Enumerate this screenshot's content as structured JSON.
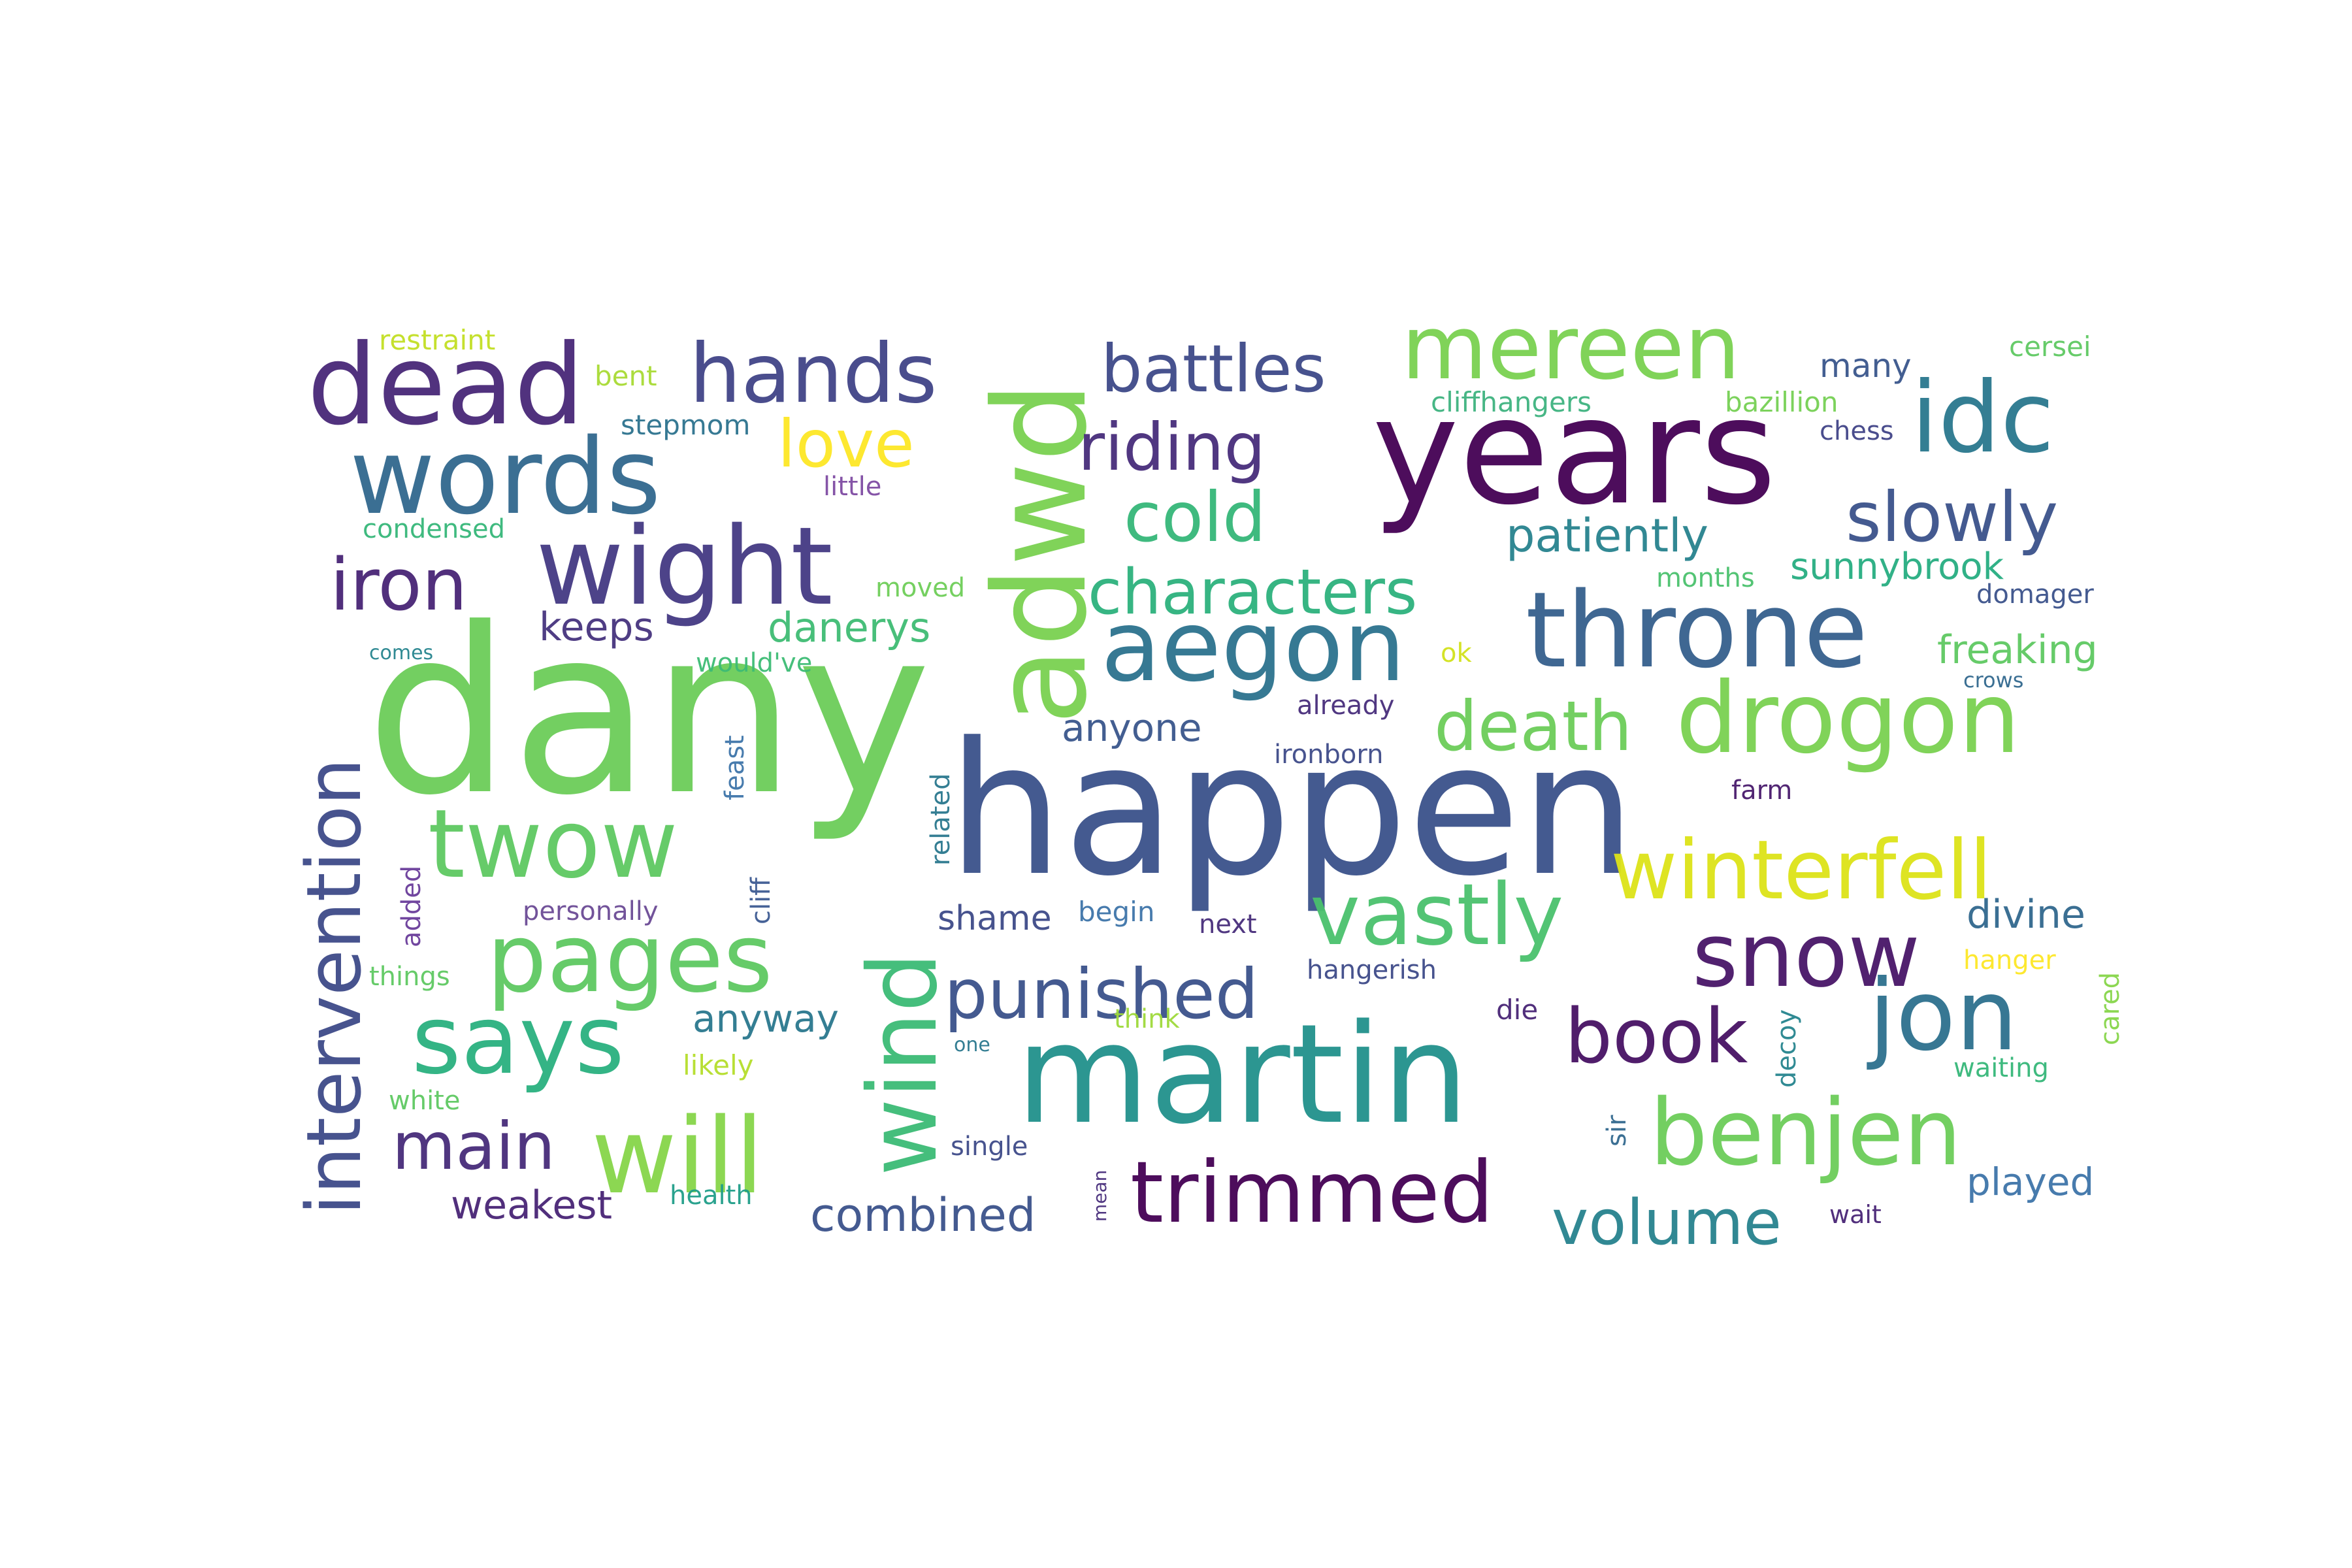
{
  "word_cloud": {
    "words": [
      {
        "text": "dany",
        "color": "#6ccd59"
      },
      {
        "text": "happen",
        "color": "#3b528b"
      },
      {
        "text": "martin",
        "color": "#21918c"
      },
      {
        "text": "years",
        "color": "#440154"
      },
      {
        "text": "adwd",
        "color": "#7ad151"
      },
      {
        "text": "dead",
        "color": "#482878"
      },
      {
        "text": "words",
        "color": "#31688e"
      },
      {
        "text": "wight",
        "color": "#443983"
      },
      {
        "text": "throne",
        "color": "#355f8d"
      },
      {
        "text": "aegon",
        "color": "#2c728e"
      },
      {
        "text": "drogon",
        "color": "#7ad151"
      },
      {
        "text": "mereen",
        "color": "#7ad151"
      },
      {
        "text": "idc",
        "color": "#2a788e"
      },
      {
        "text": "hands",
        "color": "#414487"
      },
      {
        "text": "battles",
        "color": "#3e4989"
      },
      {
        "text": "riding",
        "color": "#472d7b"
      },
      {
        "text": "love",
        "color": "#fde725"
      },
      {
        "text": "cold",
        "color": "#35b779"
      },
      {
        "text": "characters",
        "color": "#2db27d"
      },
      {
        "text": "iron",
        "color": "#482475"
      },
      {
        "text": "slowly",
        "color": "#3b528b"
      },
      {
        "text": "patiently",
        "color": "#26828e"
      },
      {
        "text": "intervention",
        "color": "#3e4a89"
      },
      {
        "text": "twow",
        "color": "#5ec962"
      },
      {
        "text": "pages",
        "color": "#5ec962"
      },
      {
        "text": "says",
        "color": "#2ab07f"
      },
      {
        "text": "will",
        "color": "#86d549"
      },
      {
        "text": "wind",
        "color": "#3cbb75"
      },
      {
        "text": "vastly",
        "color": "#4ac16d"
      },
      {
        "text": "snow",
        "color": "#481668"
      },
      {
        "text": "winterfell",
        "color": "#dde318"
      },
      {
        "text": "death",
        "color": "#6ccd59"
      },
      {
        "text": "punished",
        "color": "#3b528b"
      },
      {
        "text": "book",
        "color": "#471164"
      },
      {
        "text": "jon",
        "color": "#2d708e"
      },
      {
        "text": "benjen",
        "color": "#6ccd59"
      },
      {
        "text": "trimmed",
        "color": "#440154"
      },
      {
        "text": "volume",
        "color": "#26828e"
      },
      {
        "text": "main",
        "color": "#472c7a"
      },
      {
        "text": "combined",
        "color": "#3b528b"
      },
      {
        "text": "weakest",
        "color": "#482475"
      },
      {
        "text": "anyway",
        "color": "#2a788e"
      },
      {
        "text": "danerys",
        "color": "#3fbc73"
      },
      {
        "text": "keeps",
        "color": "#46337e"
      },
      {
        "text": "anyone",
        "color": "#39568c"
      },
      {
        "text": "sunnybrook",
        "color": "#26ad81"
      },
      {
        "text": "freaking",
        "color": "#5ec962"
      },
      {
        "text": "divine",
        "color": "#31688e"
      },
      {
        "text": "played",
        "color": "#3e74a9"
      },
      {
        "text": "restraint",
        "color": "#c2df23"
      },
      {
        "text": "bent",
        "color": "#a8db34"
      },
      {
        "text": "stepmom",
        "color": "#2c728e"
      },
      {
        "text": "little",
        "color": "#7f4ba3"
      },
      {
        "text": "condensed",
        "color": "#35b779"
      },
      {
        "text": "moved",
        "color": "#6ece58"
      },
      {
        "text": "comes",
        "color": "#25848e"
      },
      {
        "text": "would've",
        "color": "#3dbc74"
      },
      {
        "text": "cliffhangers",
        "color": "#3eb37f"
      },
      {
        "text": "bazillion",
        "color": "#75d054"
      },
      {
        "text": "many",
        "color": "#39568c"
      },
      {
        "text": "cersei",
        "color": "#5ec962"
      },
      {
        "text": "chess",
        "color": "#414487"
      },
      {
        "text": "months",
        "color": "#4ac16d"
      },
      {
        "text": "domager",
        "color": "#3b528b"
      },
      {
        "text": "crows",
        "color": "#31688e"
      },
      {
        "text": "ok",
        "color": "#d2e21b"
      },
      {
        "text": "already",
        "color": "#472d7b"
      },
      {
        "text": "ironborn",
        "color": "#3e4a89"
      },
      {
        "text": "farm",
        "color": "#481a6c"
      },
      {
        "text": "feast",
        "color": "#3e74a9"
      },
      {
        "text": "related",
        "color": "#2a788e"
      },
      {
        "text": "cliff",
        "color": "#3d5a92"
      },
      {
        "text": "added",
        "color": "#6a3d9a"
      },
      {
        "text": "personally",
        "color": "#6b4a95"
      },
      {
        "text": "shame",
        "color": "#3e4a89"
      },
      {
        "text": "begin",
        "color": "#3e74a9"
      },
      {
        "text": "next",
        "color": "#472d7b"
      },
      {
        "text": "hangerish",
        "color": "#3e4a89"
      },
      {
        "text": "hanger",
        "color": "#fde725"
      },
      {
        "text": "things",
        "color": "#5ec962"
      },
      {
        "text": "think",
        "color": "#9fda3a"
      },
      {
        "text": "die",
        "color": "#482475"
      },
      {
        "text": "decoy",
        "color": "#25848e"
      },
      {
        "text": "cared",
        "color": "#86d549"
      },
      {
        "text": "waiting",
        "color": "#35b779"
      },
      {
        "text": "one",
        "color": "#2a788e"
      },
      {
        "text": "likely",
        "color": "#b5de2b"
      },
      {
        "text": "white",
        "color": "#5ec962"
      },
      {
        "text": "single",
        "color": "#3e4a89"
      },
      {
        "text": "health",
        "color": "#1f9e89"
      },
      {
        "text": "mean",
        "color": "#472d7b"
      },
      {
        "text": "sir",
        "color": "#31688e"
      },
      {
        "text": "wait",
        "color": "#482475"
      }
    ]
  }
}
